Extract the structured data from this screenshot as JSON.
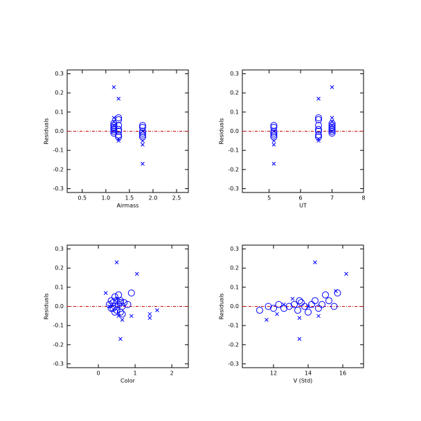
{
  "chart_data": [
    {
      "type": "scatter",
      "xlabel": "Airmass",
      "ylabel": "Residuals",
      "xlim": [
        0.18,
        2.75
      ],
      "ylim": [
        -0.32,
        0.32
      ],
      "xticks": [
        0.5,
        {
          "value": 1,
          "label": "1.0"
        },
        1.5,
        {
          "value": 2,
          "label": "2.0"
        },
        2.5
      ],
      "yticks": [
        -0.3,
        -0.2,
        -0.1,
        {
          "value": 0,
          "label": "0.0"
        },
        0.1,
        0.2,
        0.3
      ],
      "hline": 0,
      "hline_color": "#cc0000",
      "series": [
        {
          "marker": "circle",
          "color": "#0000ff",
          "x": [
            1.17,
            1.17,
            1.17,
            1.17,
            1.17,
            1.17,
            1.17,
            1.27,
            1.27,
            1.27,
            1.27,
            1.27,
            1.27,
            1.27,
            1.78,
            1.78,
            1.78,
            1.78,
            1.78,
            1.78
          ],
          "values": [
            0.03,
            0.02,
            0.01,
            0.0,
            -0.01,
            0.04,
            0.0,
            0.07,
            0.06,
            0.03,
            0.0,
            -0.02,
            -0.03,
            0.01,
            0.03,
            0.02,
            0.0,
            -0.01,
            -0.02,
            -0.03
          ]
        },
        {
          "marker": "x",
          "color": "#0000ff",
          "x": [
            1.17,
            1.17,
            1.17,
            1.17,
            1.17,
            1.27,
            1.27,
            1.27,
            1.78,
            1.78,
            1.78,
            1.78
          ],
          "values": [
            0.23,
            0.07,
            0.05,
            0.03,
            0.0,
            0.17,
            -0.04,
            -0.05,
            -0.05,
            -0.07,
            -0.17,
            0.0
          ]
        }
      ]
    },
    {
      "type": "scatter",
      "xlabel": "UT",
      "ylabel": "Residuals",
      "xlim": [
        4.15,
        8.0
      ],
      "ylim": [
        -0.32,
        0.32
      ],
      "xticks": [
        5,
        6,
        7,
        8
      ],
      "yticks": [
        -0.3,
        -0.2,
        -0.1,
        {
          "value": 0,
          "label": "0.0"
        },
        0.1,
        0.2,
        0.3
      ],
      "hline": 0,
      "hline_color": "#cc0000",
      "series": [
        {
          "marker": "circle",
          "color": "#0000ff",
          "x": [
            7.0,
            7.0,
            7.0,
            7.0,
            7.0,
            7.0,
            7.0,
            6.57,
            6.57,
            6.57,
            6.57,
            6.57,
            6.57,
            6.57,
            5.15,
            5.15,
            5.15,
            5.15,
            5.15,
            5.15
          ],
          "values": [
            0.03,
            0.02,
            0.01,
            0.0,
            -0.01,
            0.04,
            0.0,
            0.07,
            0.06,
            0.03,
            0.0,
            -0.02,
            -0.03,
            0.01,
            0.03,
            0.02,
            0.0,
            -0.01,
            -0.02,
            -0.03
          ]
        },
        {
          "marker": "x",
          "color": "#0000ff",
          "x": [
            7.0,
            7.0,
            7.0,
            7.0,
            7.0,
            6.57,
            6.57,
            6.57,
            5.15,
            5.15,
            5.15,
            5.15
          ],
          "values": [
            0.23,
            0.07,
            0.05,
            0.03,
            0.0,
            0.17,
            -0.04,
            -0.05,
            -0.05,
            -0.07,
            -0.17,
            0.0
          ]
        }
      ]
    },
    {
      "type": "scatter",
      "xlabel": "Color",
      "ylabel": "Residuals",
      "xlim": [
        -0.85,
        2.45
      ],
      "ylim": [
        -0.32,
        0.32
      ],
      "xticks": [
        0,
        1,
        2
      ],
      "yticks": [
        -0.3,
        -0.2,
        -0.1,
        {
          "value": 0,
          "label": "0.0"
        },
        0.1,
        0.2,
        0.3
      ],
      "hline": 0,
      "hline_color": "#cc0000",
      "series": [
        {
          "marker": "circle",
          "color": "#0000ff",
          "x": [
            0.3,
            0.35,
            0.4,
            0.4,
            0.45,
            0.45,
            0.5,
            0.5,
            0.55,
            0.55,
            0.6,
            0.6,
            0.65,
            0.65,
            0.7,
            0.8,
            0.9,
            0.35,
            0.45,
            0.6
          ],
          "values": [
            0.01,
            0.03,
            0.02,
            -0.01,
            0.05,
            0.0,
            -0.02,
            0.03,
            0.06,
            0.01,
            -0.03,
            0.02,
            0.0,
            -0.04,
            0.02,
            0.01,
            0.07,
            -0.01,
            -0.03,
            0.03
          ]
        },
        {
          "marker": "x",
          "color": "#0000ff",
          "x": [
            0.2,
            0.5,
            1.05,
            0.6,
            1.4,
            1.4,
            1.6,
            0.9,
            0.65,
            0.3,
            0.5,
            0.55
          ],
          "values": [
            0.07,
            0.23,
            0.17,
            -0.17,
            -0.04,
            -0.06,
            -0.02,
            -0.05,
            -0.07,
            0.0,
            0.04,
            -0.05
          ]
        }
      ]
    },
    {
      "type": "scatter",
      "xlabel": "V (Std)",
      "ylabel": "Residuals",
      "xlim": [
        10.2,
        17.2
      ],
      "ylim": [
        -0.32,
        0.32
      ],
      "xticks": [
        12,
        14,
        16
      ],
      "yticks": [
        -0.3,
        -0.2,
        -0.1,
        {
          "value": 0,
          "label": "0.0"
        },
        0.1,
        0.2,
        0.3
      ],
      "hline": 0,
      "hline_color": "#cc0000",
      "series": [
        {
          "marker": "circle",
          "color": "#0000ff",
          "x": [
            11.2,
            11.7,
            12.0,
            12.3,
            12.6,
            12.9,
            13.2,
            13.4,
            13.6,
            13.8,
            14.0,
            14.2,
            14.4,
            14.6,
            14.8,
            15.0,
            15.2,
            15.5,
            15.7,
            13.5
          ],
          "values": [
            -0.02,
            0.0,
            -0.01,
            0.01,
            -0.01,
            0.0,
            0.01,
            -0.02,
            0.02,
            0.0,
            -0.03,
            0.01,
            0.03,
            -0.01,
            0.01,
            0.06,
            0.03,
            0.0,
            0.07,
            0.03
          ]
        },
        {
          "marker": "x",
          "color": "#0000ff",
          "x": [
            11.6,
            12.2,
            13.1,
            13.5,
            14.4,
            16.2,
            15.6,
            14.6,
            13.5,
            12.6,
            14.0
          ],
          "values": [
            -0.07,
            -0.04,
            0.04,
            -0.17,
            0.23,
            0.17,
            0.08,
            -0.05,
            -0.06,
            0.01,
            0.0
          ]
        }
      ]
    }
  ]
}
